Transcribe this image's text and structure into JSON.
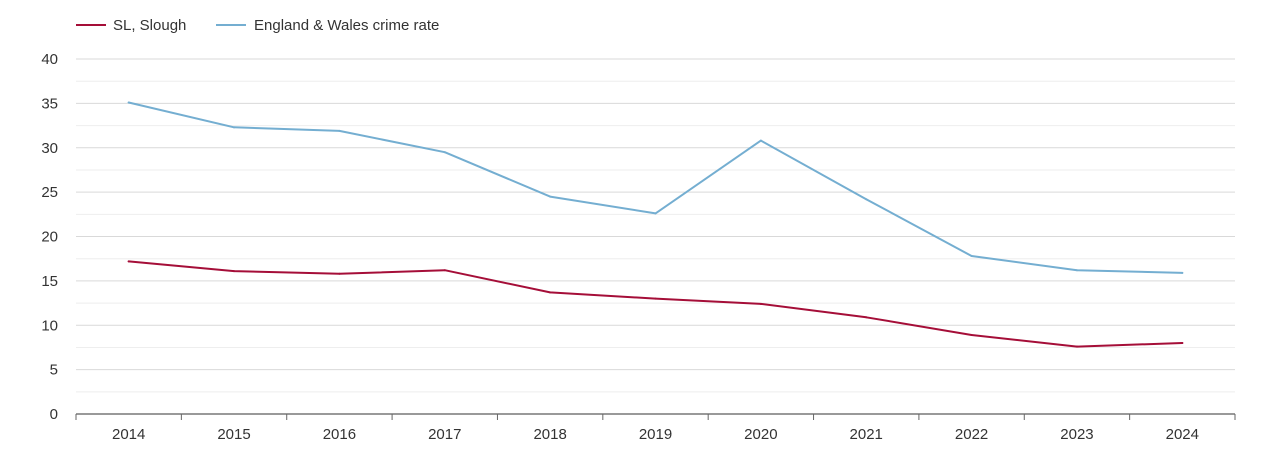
{
  "chart_data": {
    "type": "line",
    "title": "",
    "xlabel": "",
    "ylabel": "",
    "categories": [
      "2014",
      "2015",
      "2016",
      "2017",
      "2018",
      "2019",
      "2020",
      "2021",
      "2022",
      "2023",
      "2024"
    ],
    "ylim": [
      0,
      40
    ],
    "yticks": [
      "0",
      "5",
      "10",
      "15",
      "20",
      "25",
      "30",
      "35",
      "40"
    ],
    "grid": true,
    "legend_position": "top-left",
    "series": [
      {
        "name": "SL, Slough",
        "color": "#a50e38",
        "values": [
          17.2,
          16.1,
          15.8,
          16.2,
          13.7,
          13.0,
          12.4,
          10.9,
          8.9,
          7.6,
          8.0
        ]
      },
      {
        "name": "England & Wales crime rate",
        "color": "#74aed1",
        "values": [
          35.1,
          32.3,
          31.9,
          29.5,
          24.5,
          22.6,
          30.8,
          24.2,
          17.8,
          16.2,
          15.9
        ]
      }
    ]
  }
}
